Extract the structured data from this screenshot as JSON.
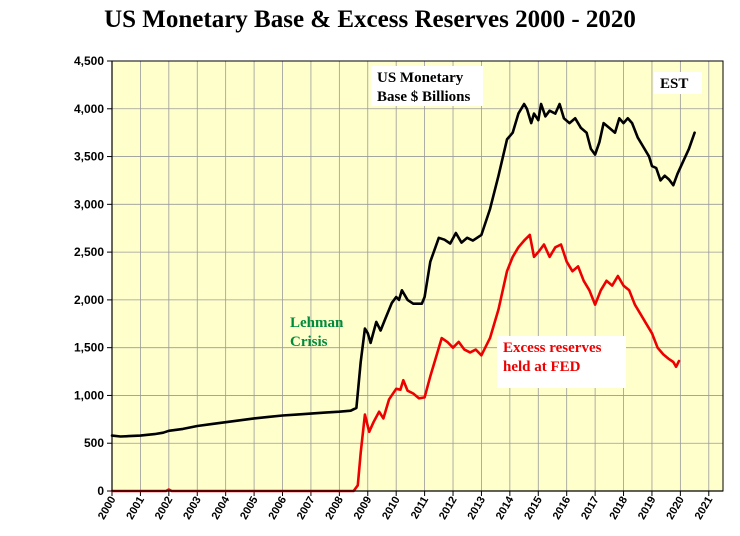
{
  "chart_data": {
    "type": "line",
    "title": "US Monetary Base & Excess Reserves 2000 - 2020",
    "xlabel": "",
    "ylabel": "",
    "x_ticks": [
      "2000",
      "2001",
      "2002",
      "2003",
      "2004",
      "2005",
      "2006",
      "2007",
      "2008",
      "2009",
      "2010",
      "2011",
      "2012",
      "2013",
      "2014",
      "2015",
      "2016",
      "2017",
      "2018",
      "2019",
      "2020",
      "2021"
    ],
    "xlim": [
      2000,
      2021.5
    ],
    "y_ticks": [
      "0",
      "500",
      "1,000",
      "1,500",
      "2,000",
      "2,500",
      "3,000",
      "3,500",
      "4,000",
      "4,500"
    ],
    "ylim": [
      0,
      4500
    ],
    "grid": true,
    "background": "#ffffcc",
    "series": [
      {
        "name": "US Monetary Base $ Billions",
        "color": "#000000",
        "points": [
          [
            2000.0,
            580
          ],
          [
            2000.3,
            570
          ],
          [
            2000.6,
            575
          ],
          [
            2001.0,
            580
          ],
          [
            2001.5,
            595
          ],
          [
            2001.8,
            610
          ],
          [
            2002.0,
            630
          ],
          [
            2002.5,
            650
          ],
          [
            2003.0,
            680
          ],
          [
            2003.5,
            700
          ],
          [
            2004.0,
            720
          ],
          [
            2004.5,
            740
          ],
          [
            2005.0,
            760
          ],
          [
            2005.5,
            775
          ],
          [
            2006.0,
            790
          ],
          [
            2006.5,
            800
          ],
          [
            2007.0,
            810
          ],
          [
            2007.5,
            820
          ],
          [
            2008.0,
            830
          ],
          [
            2008.4,
            840
          ],
          [
            2008.6,
            870
          ],
          [
            2008.75,
            1350
          ],
          [
            2008.9,
            1700
          ],
          [
            2009.0,
            1650
          ],
          [
            2009.1,
            1550
          ],
          [
            2009.3,
            1770
          ],
          [
            2009.45,
            1680
          ],
          [
            2009.6,
            1790
          ],
          [
            2009.85,
            1970
          ],
          [
            2010.0,
            2030
          ],
          [
            2010.1,
            2000
          ],
          [
            2010.2,
            2100
          ],
          [
            2010.4,
            2000
          ],
          [
            2010.6,
            1960
          ],
          [
            2010.9,
            1960
          ],
          [
            2011.0,
            2030
          ],
          [
            2011.2,
            2400
          ],
          [
            2011.5,
            2650
          ],
          [
            2011.7,
            2630
          ],
          [
            2011.9,
            2590
          ],
          [
            2012.1,
            2700
          ],
          [
            2012.3,
            2600
          ],
          [
            2012.5,
            2650
          ],
          [
            2012.7,
            2620
          ],
          [
            2013.0,
            2680
          ],
          [
            2013.3,
            2950
          ],
          [
            2013.6,
            3300
          ],
          [
            2013.9,
            3680
          ],
          [
            2014.1,
            3750
          ],
          [
            2014.3,
            3950
          ],
          [
            2014.5,
            4050
          ],
          [
            2014.6,
            4000
          ],
          [
            2014.75,
            3850
          ],
          [
            2014.85,
            3950
          ],
          [
            2015.0,
            3880
          ],
          [
            2015.1,
            4050
          ],
          [
            2015.25,
            3920
          ],
          [
            2015.4,
            3980
          ],
          [
            2015.6,
            3950
          ],
          [
            2015.75,
            4050
          ],
          [
            2015.9,
            3900
          ],
          [
            2016.1,
            3850
          ],
          [
            2016.3,
            3900
          ],
          [
            2016.5,
            3800
          ],
          [
            2016.7,
            3750
          ],
          [
            2016.85,
            3580
          ],
          [
            2017.0,
            3520
          ],
          [
            2017.15,
            3650
          ],
          [
            2017.3,
            3850
          ],
          [
            2017.5,
            3800
          ],
          [
            2017.7,
            3750
          ],
          [
            2017.85,
            3900
          ],
          [
            2018.0,
            3850
          ],
          [
            2018.15,
            3900
          ],
          [
            2018.3,
            3850
          ],
          [
            2018.5,
            3700
          ],
          [
            2018.7,
            3600
          ],
          [
            2018.9,
            3500
          ],
          [
            2019.0,
            3400
          ],
          [
            2019.15,
            3380
          ],
          [
            2019.3,
            3250
          ],
          [
            2019.45,
            3300
          ],
          [
            2019.6,
            3260
          ],
          [
            2019.75,
            3200
          ],
          [
            2019.9,
            3320
          ],
          [
            2020.1,
            3450
          ],
          [
            2020.3,
            3580
          ],
          [
            2020.5,
            3750
          ]
        ]
      },
      {
        "name": "Excess reserves held at FED",
        "color": "#ee0000",
        "points": [
          [
            2000.0,
            0
          ],
          [
            2001.9,
            0
          ],
          [
            2002.0,
            15
          ],
          [
            2002.1,
            0
          ],
          [
            2008.5,
            0
          ],
          [
            2008.65,
            60
          ],
          [
            2008.75,
            400
          ],
          [
            2008.9,
            800
          ],
          [
            2009.05,
            620
          ],
          [
            2009.2,
            720
          ],
          [
            2009.4,
            830
          ],
          [
            2009.55,
            760
          ],
          [
            2009.75,
            960
          ],
          [
            2010.0,
            1070
          ],
          [
            2010.15,
            1060
          ],
          [
            2010.25,
            1160
          ],
          [
            2010.4,
            1050
          ],
          [
            2010.6,
            1020
          ],
          [
            2010.8,
            970
          ],
          [
            2011.0,
            980
          ],
          [
            2011.2,
            1200
          ],
          [
            2011.4,
            1400
          ],
          [
            2011.6,
            1600
          ],
          [
            2011.8,
            1560
          ],
          [
            2012.0,
            1500
          ],
          [
            2012.2,
            1560
          ],
          [
            2012.4,
            1480
          ],
          [
            2012.6,
            1450
          ],
          [
            2012.8,
            1480
          ],
          [
            2013.0,
            1420
          ],
          [
            2013.3,
            1600
          ],
          [
            2013.6,
            1900
          ],
          [
            2013.9,
            2300
          ],
          [
            2014.1,
            2450
          ],
          [
            2014.3,
            2550
          ],
          [
            2014.5,
            2620
          ],
          [
            2014.7,
            2680
          ],
          [
            2014.85,
            2450
          ],
          [
            2015.0,
            2500
          ],
          [
            2015.2,
            2580
          ],
          [
            2015.4,
            2450
          ],
          [
            2015.6,
            2550
          ],
          [
            2015.8,
            2580
          ],
          [
            2016.0,
            2400
          ],
          [
            2016.2,
            2300
          ],
          [
            2016.4,
            2350
          ],
          [
            2016.6,
            2200
          ],
          [
            2016.8,
            2100
          ],
          [
            2017.0,
            1950
          ],
          [
            2017.2,
            2100
          ],
          [
            2017.4,
            2200
          ],
          [
            2017.6,
            2150
          ],
          [
            2017.8,
            2250
          ],
          [
            2018.0,
            2150
          ],
          [
            2018.2,
            2100
          ],
          [
            2018.4,
            1950
          ],
          [
            2018.6,
            1850
          ],
          [
            2018.8,
            1750
          ],
          [
            2019.0,
            1650
          ],
          [
            2019.2,
            1500
          ],
          [
            2019.4,
            1430
          ],
          [
            2019.6,
            1380
          ],
          [
            2019.75,
            1350
          ],
          [
            2019.85,
            1300
          ],
          [
            2019.95,
            1360
          ]
        ]
      }
    ],
    "annotations": [
      {
        "text": [
          "US Monetary",
          "Base $ Billions"
        ],
        "color": "#000000",
        "box": true
      },
      {
        "text": [
          "EST"
        ],
        "color": "#000000",
        "box": true
      },
      {
        "text": [
          "Lehman",
          "Crisis"
        ],
        "color": "#008a3c",
        "box": false
      },
      {
        "text": [
          "Excess reserves",
          "held at FED"
        ],
        "color": "#ee0000",
        "box": true
      }
    ]
  }
}
